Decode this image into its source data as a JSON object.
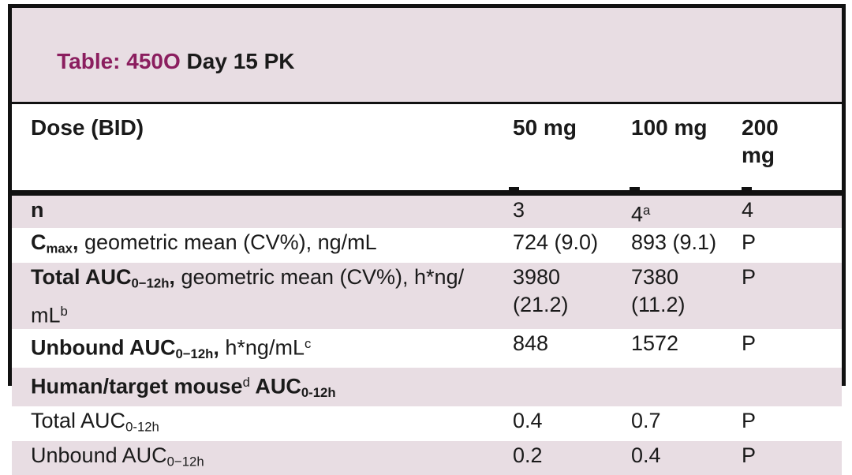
{
  "colors": {
    "accent": "#8b1e5f",
    "stripe": "#e8dde3",
    "border": "#111111",
    "text": "#1a1a1a"
  },
  "title": {
    "accent": "Table: 450O",
    "rest": " Day 15 PK"
  },
  "columns": [
    "Dose (BID)",
    "50 mg",
    "100 mg",
    "200\nmg"
  ],
  "table": {
    "rows": [
      {
        "shade": true,
        "label": [
          {
            "t": "n",
            "bold": true
          }
        ],
        "cells": [
          [
            {
              "t": "3"
            }
          ],
          [
            {
              "t": "4"
            },
            {
              "t": "a",
              "sup": true
            }
          ],
          [
            {
              "t": "4"
            }
          ]
        ]
      },
      {
        "shade": false,
        "label": [
          {
            "t": "C",
            "bold": true
          },
          {
            "t": "max",
            "bold": true,
            "sub": true
          },
          {
            "t": ",",
            "bold": true
          },
          {
            "t": " geometric mean (CV%), ng/mL"
          }
        ],
        "cells": [
          [
            {
              "t": "724 (9.0)"
            }
          ],
          [
            {
              "t": "893 (9.1)"
            }
          ],
          [
            {
              "t": "P"
            }
          ]
        ]
      },
      {
        "shade": true,
        "label": [
          {
            "t": "Total AUC",
            "bold": true
          },
          {
            "t": "0−12h",
            "bold": true,
            "sub": true
          },
          {
            "t": ",",
            "bold": true
          },
          {
            "t": " geometric mean (CV%), h*ng/\n"
          },
          {
            "t": "mL"
          },
          {
            "t": "b",
            "sup": true
          }
        ],
        "cells": [
          [
            {
              "t": "3980\n(21.2)"
            }
          ],
          [
            {
              "t": "7380\n(11.2)"
            }
          ],
          [
            {
              "t": "P"
            }
          ]
        ]
      },
      {
        "shade": false,
        "label": [
          {
            "t": "Unbound AUC",
            "bold": true
          },
          {
            "t": "0−12h",
            "bold": true,
            "sub": true
          },
          {
            "t": ",",
            "bold": true
          },
          {
            "t": " h*ng/mL"
          },
          {
            "t": "c",
            "sup": true
          }
        ],
        "cells": [
          [
            {
              "t": "848"
            }
          ],
          [
            {
              "t": "1572"
            }
          ],
          [
            {
              "t": "P"
            }
          ]
        ]
      },
      {
        "shade": true,
        "label": [
          {
            "t": "Human/target mouse",
            "bold": true
          },
          {
            "t": "d",
            "sup": true
          },
          {
            "t": " AUC",
            "bold": true
          },
          {
            "t": "0-12h",
            "bold": true,
            "sub": true
          }
        ],
        "cells": [
          [],
          [],
          []
        ]
      },
      {
        "shade": false,
        "label": [
          {
            "t": "Total AUC"
          },
          {
            "t": "0-12h",
            "sub": true
          }
        ],
        "cells": [
          [
            {
              "t": "0.4"
            }
          ],
          [
            {
              "t": "0.7"
            }
          ],
          [
            {
              "t": "P"
            }
          ]
        ]
      },
      {
        "shade": true,
        "label": [
          {
            "t": "Unbound AUC"
          },
          {
            "t": "0−12h",
            "sub": true
          }
        ],
        "cells": [
          [
            {
              "t": "0.2"
            }
          ],
          [
            {
              "t": "0.4"
            }
          ],
          [
            {
              "t": "P"
            }
          ]
        ]
      }
    ]
  }
}
